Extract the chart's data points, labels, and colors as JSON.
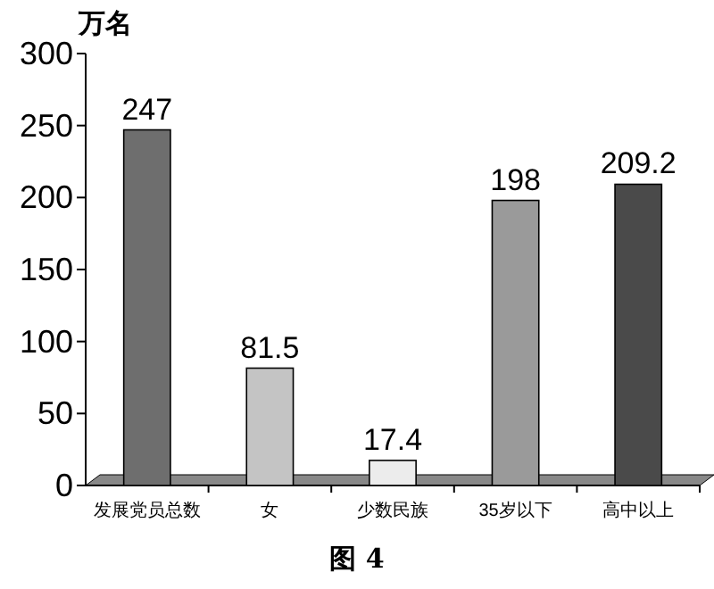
{
  "chart_data": {
    "type": "bar",
    "title": "图 4",
    "ylabel": "万名",
    "categories": [
      "发展党员总数",
      "女",
      "少数民族",
      "35岁以下",
      "高中以上"
    ],
    "values": [
      247,
      81.5,
      17.4,
      198,
      209.2
    ],
    "colors": [
      "#6e6e6e",
      "#c4c4c4",
      "#ececec",
      "#9a9a9a",
      "#4a4a4a"
    ],
    "ylim": [
      0,
      300
    ],
    "yticks": [
      0,
      50,
      100,
      150,
      200,
      250,
      300
    ],
    "data_labels": true
  }
}
